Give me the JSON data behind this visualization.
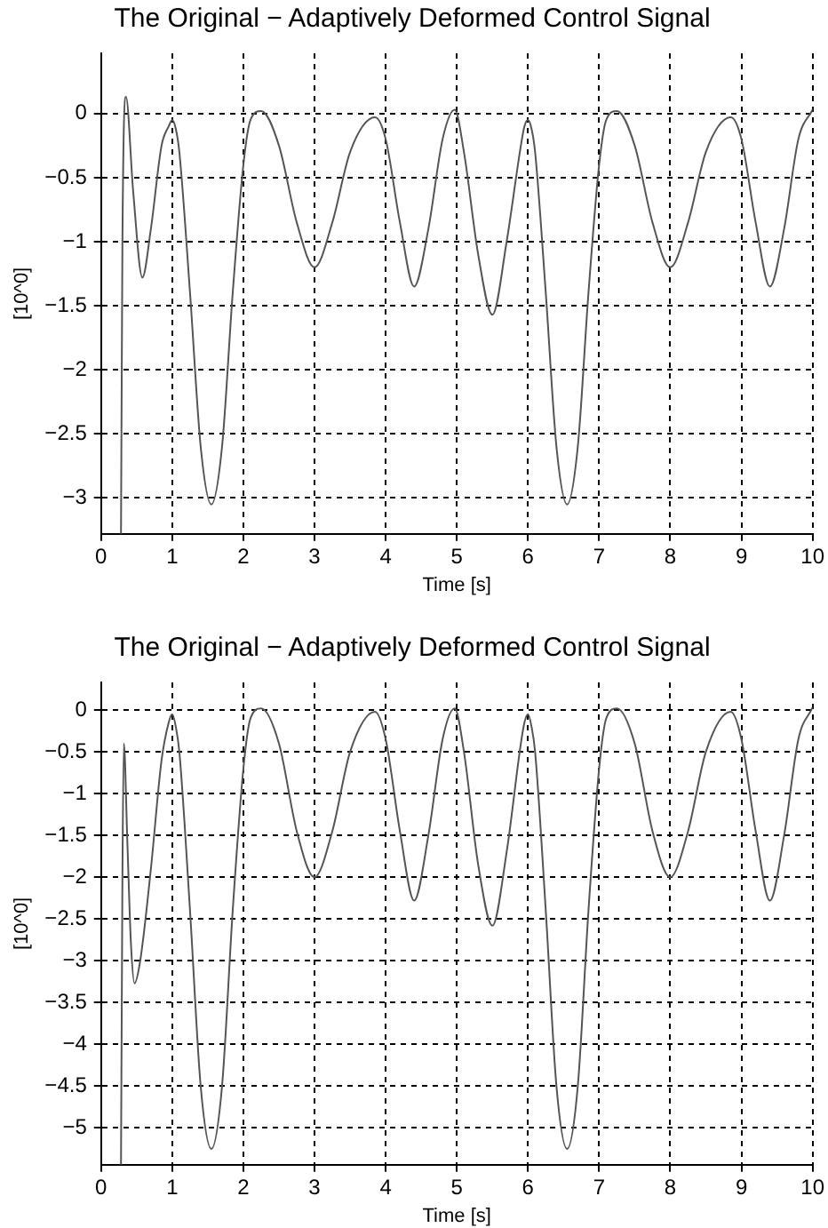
{
  "chart_data": [
    {
      "type": "line",
      "title": "The Original − Adaptively Deformed Control Signal",
      "xlabel": "Time [s]",
      "ylabel": "[10^0]",
      "grid": true,
      "marker": "none",
      "line_style": "solid",
      "series": [
        {
          "color": "#555555",
          "x": [
            0.28,
            0.3,
            0.35,
            0.45,
            0.58,
            0.7,
            0.85,
            0.95,
            1.0,
            1.05,
            1.1,
            1.25,
            1.4,
            1.55,
            1.7,
            1.85,
            2.0,
            2.1,
            2.25,
            2.5,
            2.75,
            3.0,
            3.25,
            3.5,
            3.85,
            4.0,
            4.2,
            4.4,
            4.6,
            4.8,
            4.97,
            5.1,
            5.3,
            5.5,
            5.7,
            5.9,
            5.95,
            6.0,
            6.05,
            6.1,
            6.25,
            6.4,
            6.55,
            6.7,
            6.85,
            7.0,
            7.1,
            7.25,
            7.5,
            7.75,
            8.0,
            8.25,
            8.5,
            8.85,
            9.0,
            9.2,
            9.4,
            9.6,
            9.8,
            10.0
          ],
          "values": [
            -3.28,
            -1.0,
            0.13,
            -0.6,
            -1.28,
            -0.9,
            -0.25,
            -0.1,
            -0.05,
            -0.12,
            -0.3,
            -1.4,
            -2.6,
            -3.05,
            -2.6,
            -1.4,
            -0.4,
            -0.05,
            0.02,
            -0.25,
            -0.85,
            -1.2,
            -0.85,
            -0.3,
            -0.03,
            -0.2,
            -0.85,
            -1.35,
            -0.9,
            -0.2,
            0.03,
            -0.3,
            -1.1,
            -1.57,
            -1.0,
            -0.25,
            -0.1,
            -0.05,
            -0.12,
            -0.3,
            -1.4,
            -2.6,
            -3.05,
            -2.6,
            -1.4,
            -0.4,
            -0.05,
            0.02,
            -0.25,
            -0.85,
            -1.2,
            -0.85,
            -0.3,
            -0.03,
            -0.2,
            -0.85,
            -1.35,
            -0.9,
            -0.2,
            0.03
          ]
        }
      ],
      "xlim": [
        0,
        10
      ],
      "xticks": [
        0,
        1,
        2,
        3,
        4,
        5,
        6,
        7,
        8,
        9,
        10
      ],
      "ylim": [
        -3.28,
        0.47
      ],
      "yticks": [
        {
          "value": -3,
          "label": "−3"
        },
        {
          "value": -2.5,
          "label": "−2.5"
        },
        {
          "value": -2,
          "label": "−2"
        },
        {
          "value": -1.5,
          "label": "−1.5"
        },
        {
          "value": -1,
          "label": "−1"
        },
        {
          "value": -0.5,
          "label": "−0.5"
        },
        0
      ]
    },
    {
      "type": "line",
      "title": "The Original − Adaptively Deformed Control Signal",
      "xlabel": "Time [s]",
      "ylabel": "[10^0]",
      "grid": true,
      "marker": "none",
      "line_style": "solid",
      "series": [
        {
          "color": "#555555",
          "x": [
            0.28,
            0.3,
            0.32,
            0.37,
            0.42,
            0.47,
            0.55,
            0.7,
            0.85,
            0.95,
            1.0,
            1.05,
            1.1,
            1.25,
            1.4,
            1.55,
            1.7,
            1.85,
            2.0,
            2.1,
            2.25,
            2.5,
            2.75,
            3.0,
            3.25,
            3.5,
            3.85,
            4.0,
            4.2,
            4.4,
            4.6,
            4.8,
            4.97,
            5.1,
            5.3,
            5.5,
            5.7,
            5.9,
            5.95,
            6.0,
            6.05,
            6.1,
            6.25,
            6.4,
            6.55,
            6.7,
            6.85,
            7.0,
            7.1,
            7.25,
            7.5,
            7.75,
            8.0,
            8.25,
            8.5,
            8.85,
            9.0,
            9.2,
            9.4,
            9.6,
            9.8,
            10.0
          ],
          "values": [
            -5.44,
            -2.0,
            -0.4,
            -1.6,
            -2.8,
            -3.27,
            -3.0,
            -1.9,
            -0.6,
            -0.15,
            -0.05,
            -0.2,
            -0.5,
            -2.4,
            -4.5,
            -5.25,
            -4.5,
            -2.4,
            -0.7,
            -0.1,
            0.02,
            -0.4,
            -1.45,
            -2.0,
            -1.45,
            -0.5,
            -0.02,
            -0.35,
            -1.45,
            -2.28,
            -1.5,
            -0.35,
            0.02,
            -0.5,
            -1.85,
            -2.58,
            -1.7,
            -0.4,
            -0.15,
            -0.05,
            -0.2,
            -0.5,
            -2.4,
            -4.5,
            -5.25,
            -4.5,
            -2.4,
            -0.7,
            -0.1,
            0.02,
            -0.4,
            -1.45,
            -2.0,
            -1.45,
            -0.5,
            -0.02,
            -0.35,
            -1.45,
            -2.28,
            -1.5,
            -0.35,
            0.03
          ]
        }
      ],
      "xlim": [
        0,
        10
      ],
      "xticks": [
        0,
        1,
        2,
        3,
        4,
        5,
        6,
        7,
        8,
        9,
        10
      ],
      "ylim": [
        -5.44,
        0.33
      ],
      "yticks": [
        {
          "value": -5,
          "label": "−5"
        },
        {
          "value": -4.5,
          "label": "−4.5"
        },
        {
          "value": -4,
          "label": "−4"
        },
        {
          "value": -3.5,
          "label": "−3.5"
        },
        {
          "value": -3,
          "label": "−3"
        },
        {
          "value": -2.5,
          "label": "−2.5"
        },
        {
          "value": -2,
          "label": "−2"
        },
        {
          "value": -1.5,
          "label": "−1.5"
        },
        {
          "value": -1,
          "label": "−1"
        },
        {
          "value": -0.5,
          "label": "−0.5"
        },
        0
      ]
    }
  ]
}
